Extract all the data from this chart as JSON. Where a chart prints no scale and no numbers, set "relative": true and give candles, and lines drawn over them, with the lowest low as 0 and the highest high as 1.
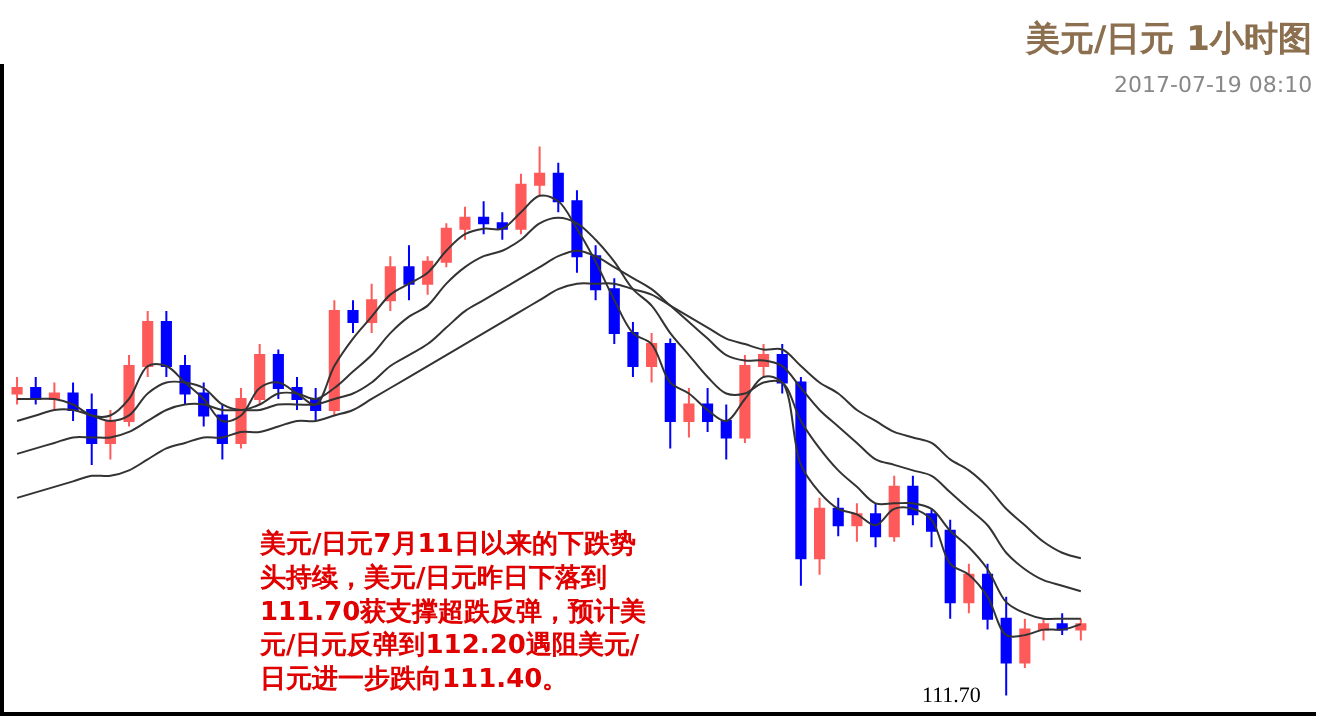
{
  "chart_data": {
    "type": "candlestick",
    "title": "美元/日元 1小时图",
    "subtitle": "2017-07-19 08:10",
    "relative": true,
    "categories": [
      null,
      null,
      null,
      null,
      null,
      null,
      null,
      null,
      null,
      null,
      null,
      null,
      null,
      null,
      null,
      null,
      null,
      null,
      null,
      null,
      null,
      null,
      null,
      null,
      null,
      null,
      null,
      null,
      null,
      null,
      null,
      null,
      null,
      null,
      null,
      null,
      null,
      null,
      null,
      null,
      null,
      null,
      null,
      null,
      null,
      null,
      null,
      null,
      null,
      null,
      null,
      null,
      null,
      null,
      null,
      null,
      null,
      null
    ],
    "ohlc": [
      [
        0.55,
        0.58,
        0.53,
        0.56
      ],
      [
        0.56,
        0.58,
        0.53,
        0.54
      ],
      [
        0.54,
        0.57,
        0.52,
        0.55
      ],
      [
        0.55,
        0.57,
        0.5,
        0.52
      ],
      [
        0.52,
        0.55,
        0.42,
        0.46
      ],
      [
        0.46,
        0.52,
        0.43,
        0.5
      ],
      [
        0.5,
        0.62,
        0.49,
        0.6
      ],
      [
        0.6,
        0.7,
        0.58,
        0.68
      ],
      [
        0.68,
        0.7,
        0.58,
        0.6
      ],
      [
        0.6,
        0.62,
        0.53,
        0.55
      ],
      [
        0.55,
        0.57,
        0.49,
        0.51
      ],
      [
        0.51,
        0.53,
        0.43,
        0.46
      ],
      [
        0.46,
        0.56,
        0.45,
        0.54
      ],
      [
        0.54,
        0.64,
        0.53,
        0.62
      ],
      [
        0.62,
        0.63,
        0.54,
        0.56
      ],
      [
        0.56,
        0.58,
        0.52,
        0.54
      ],
      [
        0.54,
        0.56,
        0.5,
        0.52
      ],
      [
        0.52,
        0.72,
        0.51,
        0.7
      ],
      [
        0.7,
        0.72,
        0.66,
        0.68
      ],
      [
        0.68,
        0.75,
        0.66,
        0.72
      ],
      [
        0.72,
        0.8,
        0.7,
        0.78
      ],
      [
        0.78,
        0.82,
        0.72,
        0.75
      ],
      [
        0.75,
        0.8,
        0.73,
        0.79
      ],
      [
        0.79,
        0.86,
        0.78,
        0.85
      ],
      [
        0.85,
        0.89,
        0.83,
        0.87
      ],
      [
        0.87,
        0.9,
        0.84,
        0.86
      ],
      [
        0.86,
        0.88,
        0.83,
        0.85
      ],
      [
        0.85,
        0.95,
        0.84,
        0.93
      ],
      [
        0.93,
        1.0,
        0.91,
        0.95
      ],
      [
        0.95,
        0.97,
        0.88,
        0.9
      ],
      [
        0.9,
        0.92,
        0.77,
        0.8
      ],
      [
        0.8,
        0.82,
        0.72,
        0.74
      ],
      [
        0.74,
        0.76,
        0.64,
        0.66
      ],
      [
        0.66,
        0.68,
        0.58,
        0.6
      ],
      [
        0.6,
        0.66,
        0.57,
        0.64
      ],
      [
        0.64,
        0.65,
        0.45,
        0.5
      ],
      [
        0.5,
        0.56,
        0.47,
        0.53
      ],
      [
        0.53,
        0.56,
        0.48,
        0.5
      ],
      [
        0.5,
        0.53,
        0.43,
        0.47
      ],
      [
        0.47,
        0.62,
        0.46,
        0.6
      ],
      [
        0.6,
        0.64,
        0.58,
        0.62
      ],
      [
        0.62,
        0.64,
        0.55,
        0.57
      ],
      [
        0.57,
        0.58,
        0.2,
        0.25
      ],
      [
        0.25,
        0.36,
        0.22,
        0.34
      ],
      [
        0.34,
        0.36,
        0.29,
        0.31
      ],
      [
        0.31,
        0.35,
        0.28,
        0.33
      ],
      [
        0.33,
        0.35,
        0.27,
        0.29
      ],
      [
        0.29,
        0.4,
        0.28,
        0.38
      ],
      [
        0.38,
        0.4,
        0.31,
        0.33
      ],
      [
        0.33,
        0.34,
        0.27,
        0.3
      ],
      [
        0.3,
        0.32,
        0.14,
        0.17
      ],
      [
        0.17,
        0.24,
        0.15,
        0.22
      ],
      [
        0.22,
        0.24,
        0.12,
        0.14
      ],
      [
        0.14,
        0.18,
        0.0,
        0.06
      ],
      [
        0.06,
        0.14,
        0.05,
        0.12
      ],
      [
        0.12,
        0.14,
        0.1,
        0.13
      ],
      [
        0.13,
        0.15,
        0.11,
        0.12
      ],
      [
        0.12,
        0.14,
        0.1,
        0.13
      ]
    ],
    "colors": [
      "#ff5a5a",
      "#0000ff",
      "#ff5a5a",
      "#0000ff",
      "#0000ff",
      "#ff5a5a",
      "#ff5a5a",
      "#ff5a5a",
      "#0000ff",
      "#0000ff",
      "#0000ff",
      "#0000ff",
      "#ff5a5a",
      "#ff5a5a",
      "#0000ff",
      "#0000ff",
      "#0000ff",
      "#ff5a5a",
      "#0000ff",
      "#ff5a5a",
      "#ff5a5a",
      "#0000ff",
      "#ff5a5a",
      "#ff5a5a",
      "#ff5a5a",
      "#0000ff",
      "#0000ff",
      "#ff5a5a",
      "#ff5a5a",
      "#0000ff",
      "#0000ff",
      "#0000ff",
      "#0000ff",
      "#0000ff",
      "#ff5a5a",
      "#0000ff",
      "#ff5a5a",
      "#0000ff",
      "#0000ff",
      "#ff5a5a",
      "#ff5a5a",
      "#0000ff",
      "#0000ff",
      "#ff5a5a",
      "#0000ff",
      "#ff5a5a",
      "#0000ff",
      "#ff5a5a",
      "#0000ff",
      "#0000ff",
      "#0000ff",
      "#ff5a5a",
      "#0000ff",
      "#0000ff",
      "#ff5a5a",
      "#ff5a5a",
      "#0000ff",
      "#ff5a5a"
    ],
    "series": [
      {
        "type": "line",
        "color": "#333333",
        "values": [
          0.54,
          0.54,
          0.54,
          0.53,
          0.51,
          0.51,
          0.54,
          0.6,
          0.6,
          0.57,
          0.54,
          0.5,
          0.51,
          0.56,
          0.57,
          0.55,
          0.53,
          0.6,
          0.65,
          0.69,
          0.73,
          0.75,
          0.77,
          0.81,
          0.84,
          0.85,
          0.85,
          0.88,
          0.91,
          0.9,
          0.85,
          0.79,
          0.72,
          0.66,
          0.64,
          0.57,
          0.55,
          0.52,
          0.5,
          0.54,
          0.58,
          0.57,
          0.42,
          0.37,
          0.34,
          0.33,
          0.31,
          0.34,
          0.34,
          0.32,
          0.24,
          0.22,
          0.18,
          0.11,
          0.11,
          0.12,
          0.12,
          0.13
        ]
      },
      {
        "type": "line",
        "color": "#333333",
        "values": [
          0.5,
          0.51,
          0.52,
          0.52,
          0.51,
          0.5,
          0.51,
          0.55,
          0.57,
          0.57,
          0.56,
          0.53,
          0.52,
          0.53,
          0.55,
          0.55,
          0.54,
          0.56,
          0.59,
          0.62,
          0.66,
          0.69,
          0.71,
          0.75,
          0.78,
          0.8,
          0.81,
          0.83,
          0.86,
          0.87,
          0.86,
          0.83,
          0.79,
          0.74,
          0.71,
          0.66,
          0.62,
          0.58,
          0.55,
          0.55,
          0.57,
          0.57,
          0.5,
          0.45,
          0.41,
          0.38,
          0.35,
          0.35,
          0.35,
          0.34,
          0.3,
          0.27,
          0.23,
          0.17,
          0.15,
          0.14,
          0.14,
          0.14
        ]
      },
      {
        "type": "line",
        "color": "#333333",
        "values": [
          0.44,
          0.45,
          0.46,
          0.47,
          0.47,
          0.47,
          0.48,
          0.5,
          0.52,
          0.53,
          0.53,
          0.52,
          0.52,
          0.52,
          0.53,
          0.53,
          0.53,
          0.54,
          0.55,
          0.57,
          0.6,
          0.62,
          0.64,
          0.67,
          0.7,
          0.72,
          0.74,
          0.76,
          0.78,
          0.8,
          0.81,
          0.8,
          0.78,
          0.76,
          0.74,
          0.71,
          0.68,
          0.65,
          0.62,
          0.61,
          0.61,
          0.6,
          0.56,
          0.52,
          0.49,
          0.46,
          0.43,
          0.42,
          0.41,
          0.4,
          0.37,
          0.34,
          0.31,
          0.26,
          0.23,
          0.21,
          0.2,
          0.19
        ]
      },
      {
        "type": "line",
        "color": "#333333",
        "values": [
          0.36,
          0.37,
          0.38,
          0.39,
          0.4,
          0.4,
          0.41,
          0.43,
          0.45,
          0.46,
          0.47,
          0.47,
          0.48,
          0.48,
          0.49,
          0.5,
          0.5,
          0.51,
          0.52,
          0.54,
          0.56,
          0.58,
          0.6,
          0.62,
          0.64,
          0.66,
          0.68,
          0.7,
          0.72,
          0.74,
          0.75,
          0.75,
          0.75,
          0.74,
          0.73,
          0.71,
          0.69,
          0.67,
          0.65,
          0.64,
          0.63,
          0.63,
          0.6,
          0.57,
          0.55,
          0.52,
          0.5,
          0.48,
          0.47,
          0.46,
          0.43,
          0.41,
          0.38,
          0.34,
          0.31,
          0.28,
          0.26,
          0.25
        ]
      }
    ],
    "annotations": [
      "美元/日元7月11日以来的下跌势头持续，美元/日元昨日下落到111.70获支撑超跌反弹，预计美元/日元反弹到112.20遇阻美元/日元进一步跌向111.40。",
      "111.70"
    ]
  }
}
